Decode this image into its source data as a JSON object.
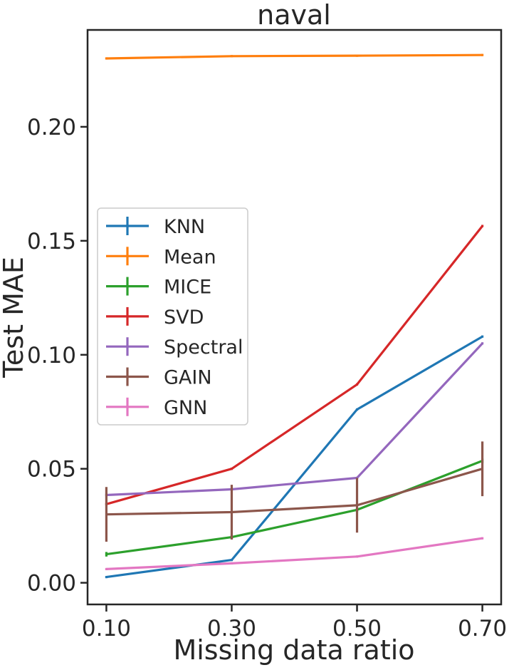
{
  "chart_data": {
    "type": "line",
    "title": "naval",
    "xlabel": "Missing data ratio",
    "ylabel": "Test MAE",
    "x": [
      0.1,
      0.3,
      0.5,
      0.7
    ],
    "xticks": [
      "0.10",
      "0.30",
      "0.50",
      "0.70"
    ],
    "xlim": [
      0.07,
      0.73
    ],
    "yticks": [
      "0.00",
      "0.05",
      "0.10",
      "0.15",
      "0.20"
    ],
    "ytick_values": [
      0.0,
      0.05,
      0.1,
      0.15,
      0.2
    ],
    "ylim": [
      -0.0095,
      0.2425
    ],
    "grid": false,
    "legend_position": "center-left",
    "series": [
      {
        "name": "KNN",
        "color": "#1f77b4",
        "values": [
          0.0025,
          0.01,
          0.076,
          0.108
        ],
        "errors": [
          0.0005,
          0.0005,
          0.0005,
          0.0005
        ]
      },
      {
        "name": "Mean",
        "color": "#ff7f0e",
        "values": [
          0.23,
          0.231,
          0.2312,
          0.2315
        ],
        "errors": [
          0.0005,
          0.0005,
          0.0005,
          0.0005
        ]
      },
      {
        "name": "MICE",
        "color": "#2ca02c",
        "values": [
          0.0125,
          0.02,
          0.032,
          0.0535
        ],
        "errors": [
          0.001,
          0.001,
          0.001,
          0.001
        ]
      },
      {
        "name": "SVD",
        "color": "#d62728",
        "values": [
          0.0345,
          0.05,
          0.087,
          0.1565
        ],
        "errors": [
          0.0005,
          0.0005,
          0.0005,
          0.0005
        ]
      },
      {
        "name": "Spectral",
        "color": "#9467bd",
        "values": [
          0.0385,
          0.041,
          0.046,
          0.105
        ],
        "errors": [
          0.0005,
          0.0005,
          0.0005,
          0.0005
        ]
      },
      {
        "name": "GAIN",
        "color": "#8c564b",
        "values": [
          0.03,
          0.031,
          0.034,
          0.05
        ],
        "errors": [
          0.012,
          0.012,
          0.012,
          0.012
        ]
      },
      {
        "name": "GNN",
        "color": "#e377c2",
        "values": [
          0.006,
          0.0085,
          0.0115,
          0.0195
        ],
        "errors": [
          0.0005,
          0.0005,
          0.0005,
          0.0005
        ]
      }
    ]
  }
}
